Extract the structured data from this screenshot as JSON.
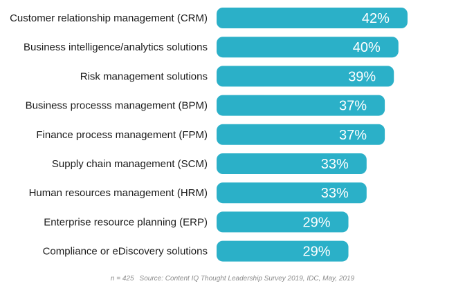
{
  "chart_data": {
    "type": "bar",
    "orientation": "horizontal",
    "categories": [
      "Customer relationship management (CRM)",
      "Business intelligence/analytics solutions",
      "Risk management solutions",
      "Business processs management (BPM)",
      "Finance process management (FPM)",
      "Supply chain management (SCM)",
      "Human resources management (HRM)",
      "Enterprise resource planning (ERP)",
      "Compliance or eDiscovery solutions"
    ],
    "values": [
      42,
      40,
      39,
      37,
      37,
      33,
      33,
      29,
      29
    ],
    "value_labels": [
      "42%",
      "40%",
      "39%",
      "37%",
      "37%",
      "33%",
      "33%",
      "29%",
      "29%"
    ],
    "title": "",
    "xlabel": "",
    "ylabel": "",
    "xlim": [
      0,
      45
    ],
    "grid": false,
    "bar_color": "#2bb0c8"
  },
  "footnote": {
    "n": "n = 425",
    "source": "Source: Content IQ Thought Leadership Survey 2019, IDC, May, 2019"
  }
}
